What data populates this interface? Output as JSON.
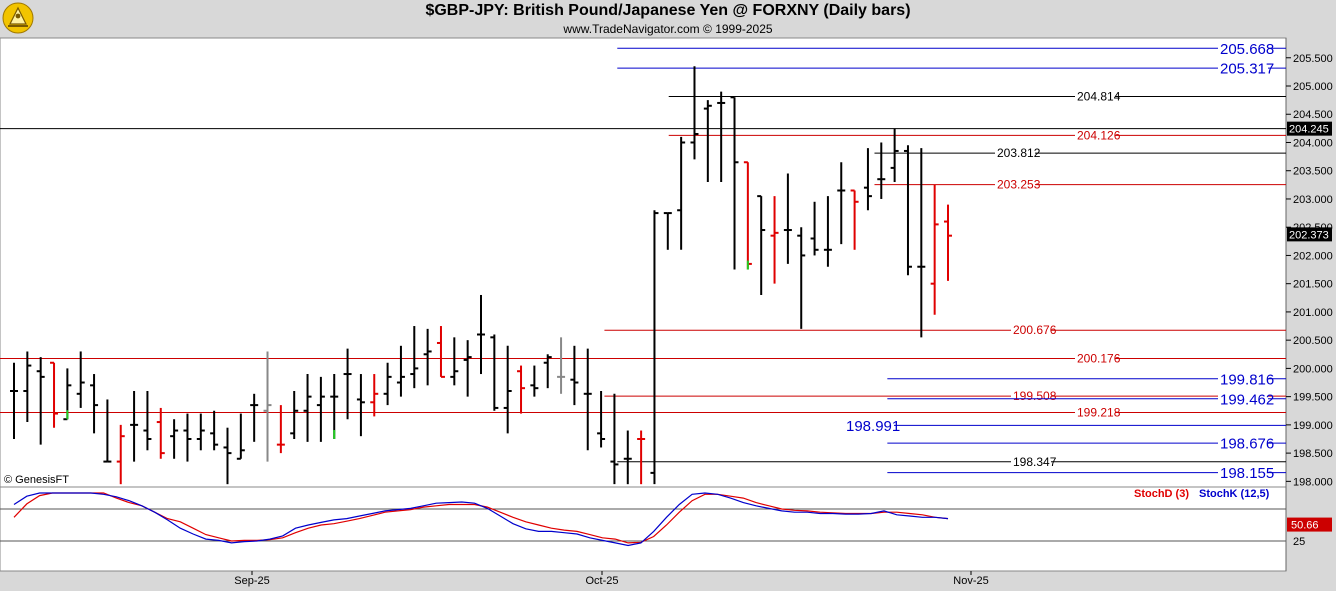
{
  "header": {
    "title": "$GBP-JPY:  British Pound/Japanese Yen @ FORXNY  (Daily bars)",
    "subtitle": "www.TradeNavigator.com © 1999-2025"
  },
  "colors": {
    "up_bar": "#000000",
    "down_bar": "#e00000",
    "special_bar_green": "#22cc22",
    "special_bar_gray": "#888888",
    "blue_level": "#0000cc",
    "red_level": "#cc0000",
    "black_level": "#000000",
    "stoch_d": "#e00000",
    "stoch_k": "#0000cc",
    "panel_bg": "#ffffff",
    "frame_bg": "#d8d8d8"
  },
  "icons": {
    "logo": "genesis-logo-icon"
  },
  "watermark": "© GenesisFT",
  "chart_data": [
    {
      "type": "ohlc",
      "ylim": [
        197.9,
        205.85
      ],
      "y_ticks": [
        "198.000",
        "198.500",
        "199.000",
        "199.500",
        "200.000",
        "200.500",
        "201.000",
        "201.500",
        "202.000",
        "202.500",
        "203.000",
        "203.500",
        "204.000",
        "204.500",
        "205.000",
        "205.500"
      ],
      "x_labels": [
        "Sep-25",
        "Oct-25",
        "Nov-25"
      ],
      "last_price_tag": "204.245",
      "current_price_tag": "202.373",
      "bars": [
        {
          "o": 199.6,
          "h": 200.1,
          "l": 198.75,
          "c": 199.6,
          "color": "up"
        },
        {
          "o": 199.6,
          "h": 200.3,
          "l": 199.05,
          "c": 200.05,
          "color": "up"
        },
        {
          "o": 199.95,
          "h": 200.2,
          "l": 198.65,
          "c": 199.85,
          "color": "up"
        },
        {
          "o": 200.1,
          "h": 200.1,
          "l": 198.95,
          "c": 199.2,
          "color": "down"
        },
        {
          "o": 199.1,
          "h": 200.0,
          "l": 199.1,
          "c": 199.7,
          "color": "up",
          "special": "green"
        },
        {
          "o": 199.55,
          "h": 200.3,
          "l": 199.3,
          "c": 199.75,
          "color": "up"
        },
        {
          "o": 199.7,
          "h": 199.9,
          "l": 198.85,
          "c": 199.35,
          "color": "up"
        },
        {
          "o": 198.35,
          "h": 199.45,
          "l": 198.35,
          "c": 198.35,
          "color": "up"
        },
        {
          "o": 198.35,
          "h": 199.0,
          "l": 197.95,
          "c": 198.8,
          "color": "down"
        },
        {
          "o": 199.0,
          "h": 199.6,
          "l": 198.35,
          "c": 199.0,
          "color": "up"
        },
        {
          "o": 198.9,
          "h": 199.6,
          "l": 198.55,
          "c": 198.75,
          "color": "up"
        },
        {
          "o": 199.05,
          "h": 199.3,
          "l": 198.4,
          "c": 198.5,
          "color": "down"
        },
        {
          "o": 198.8,
          "h": 199.1,
          "l": 198.4,
          "c": 198.9,
          "color": "up"
        },
        {
          "o": 198.9,
          "h": 199.2,
          "l": 198.35,
          "c": 198.75,
          "color": "up"
        },
        {
          "o": 198.75,
          "h": 199.2,
          "l": 198.55,
          "c": 198.9,
          "color": "up"
        },
        {
          "o": 198.85,
          "h": 199.25,
          "l": 198.55,
          "c": 198.65,
          "color": "up"
        },
        {
          "o": 198.6,
          "h": 198.95,
          "l": 197.95,
          "c": 198.5,
          "color": "up"
        },
        {
          "o": 198.4,
          "h": 199.2,
          "l": 198.4,
          "c": 198.55,
          "color": "up"
        },
        {
          "o": 199.35,
          "h": 199.55,
          "l": 198.7,
          "c": 199.35,
          "color": "up"
        },
        {
          "o": 199.25,
          "h": 200.3,
          "l": 198.35,
          "c": 199.35,
          "color": "up",
          "special": "gray"
        },
        {
          "o": 198.65,
          "h": 199.35,
          "l": 198.5,
          "c": 198.65,
          "color": "down"
        },
        {
          "o": 198.85,
          "h": 199.6,
          "l": 198.75,
          "c": 199.25,
          "color": "up"
        },
        {
          "o": 199.25,
          "h": 199.9,
          "l": 198.7,
          "c": 199.5,
          "color": "up"
        },
        {
          "o": 199.35,
          "h": 199.85,
          "l": 198.7,
          "c": 199.5,
          "color": "up"
        },
        {
          "o": 199.5,
          "h": 199.9,
          "l": 198.75,
          "c": 199.5,
          "color": "up",
          "special": "green"
        },
        {
          "o": 199.9,
          "h": 200.35,
          "l": 199.1,
          "c": 199.9,
          "color": "up"
        },
        {
          "o": 199.45,
          "h": 199.9,
          "l": 198.8,
          "c": 199.4,
          "color": "up"
        },
        {
          "o": 199.4,
          "h": 199.9,
          "l": 199.15,
          "c": 199.55,
          "color": "down"
        },
        {
          "o": 199.55,
          "h": 200.1,
          "l": 199.35,
          "c": 199.85,
          "color": "up"
        },
        {
          "o": 199.75,
          "h": 200.4,
          "l": 199.5,
          "c": 199.85,
          "color": "up"
        },
        {
          "o": 199.9,
          "h": 200.75,
          "l": 199.65,
          "c": 200.0,
          "color": "up"
        },
        {
          "o": 200.25,
          "h": 200.7,
          "l": 199.7,
          "c": 200.3,
          "color": "up"
        },
        {
          "o": 200.45,
          "h": 200.75,
          "l": 199.85,
          "c": 199.85,
          "color": "down"
        },
        {
          "o": 199.85,
          "h": 200.55,
          "l": 199.7,
          "c": 199.95,
          "color": "up"
        },
        {
          "o": 200.15,
          "h": 200.5,
          "l": 199.5,
          "c": 200.2,
          "color": "up"
        },
        {
          "o": 200.6,
          "h": 201.3,
          "l": 199.9,
          "c": 200.6,
          "color": "up"
        },
        {
          "o": 200.55,
          "h": 200.6,
          "l": 199.25,
          "c": 199.3,
          "color": "up"
        },
        {
          "o": 199.3,
          "h": 200.4,
          "l": 198.85,
          "c": 199.6,
          "color": "up"
        },
        {
          "o": 199.95,
          "h": 200.05,
          "l": 199.2,
          "c": 199.65,
          "color": "down"
        },
        {
          "o": 199.7,
          "h": 200.05,
          "l": 199.5,
          "c": 199.65,
          "color": "up"
        },
        {
          "o": 200.1,
          "h": 200.25,
          "l": 199.65,
          "c": 200.2,
          "color": "up"
        },
        {
          "o": 199.85,
          "h": 200.55,
          "l": 199.55,
          "c": 199.85,
          "color": "up",
          "special": "gray"
        },
        {
          "o": 199.8,
          "h": 200.4,
          "l": 199.35,
          "c": 199.75,
          "color": "up"
        },
        {
          "o": 199.55,
          "h": 200.35,
          "l": 198.55,
          "c": 199.55,
          "color": "up"
        },
        {
          "o": 198.85,
          "h": 199.6,
          "l": 198.6,
          "c": 198.75,
          "color": "up"
        },
        {
          "o": 198.35,
          "h": 199.55,
          "l": 197.95,
          "c": 198.3,
          "color": "up"
        },
        {
          "o": 198.4,
          "h": 198.9,
          "l": 197.95,
          "c": 198.4,
          "color": "up"
        },
        {
          "o": 198.75,
          "h": 198.9,
          "l": 197.95,
          "c": 198.75,
          "color": "down"
        },
        {
          "o": 198.15,
          "h": 202.8,
          "l": 197.95,
          "c": 202.75,
          "color": "up"
        },
        {
          "o": 202.75,
          "h": 202.75,
          "l": 202.1,
          "c": 202.75,
          "color": "up"
        },
        {
          "o": 202.8,
          "h": 204.1,
          "l": 202.1,
          "c": 204.0,
          "color": "up"
        },
        {
          "o": 204.0,
          "h": 205.35,
          "l": 203.7,
          "c": 204.15,
          "color": "up"
        },
        {
          "o": 204.6,
          "h": 204.75,
          "l": 203.3,
          "c": 204.65,
          "color": "up"
        },
        {
          "o": 204.7,
          "h": 204.9,
          "l": 203.3,
          "c": 204.7,
          "color": "up"
        },
        {
          "o": 204.8,
          "h": 204.8,
          "l": 201.75,
          "c": 203.65,
          "color": "up"
        },
        {
          "o": 203.65,
          "h": 203.65,
          "l": 201.75,
          "c": 201.85,
          "color": "down",
          "special": "green"
        },
        {
          "o": 203.05,
          "h": 203.05,
          "l": 201.3,
          "c": 202.45,
          "color": "up"
        },
        {
          "o": 202.35,
          "h": 203.05,
          "l": 201.5,
          "c": 202.4,
          "color": "down"
        },
        {
          "o": 202.45,
          "h": 203.45,
          "l": 201.85,
          "c": 202.45,
          "color": "up"
        },
        {
          "o": 202.35,
          "h": 202.5,
          "l": 200.7,
          "c": 202.0,
          "color": "up"
        },
        {
          "o": 202.3,
          "h": 202.95,
          "l": 202.0,
          "c": 202.1,
          "color": "up"
        },
        {
          "o": 202.1,
          "h": 203.05,
          "l": 201.8,
          "c": 202.1,
          "color": "up"
        },
        {
          "o": 203.15,
          "h": 203.65,
          "l": 202.2,
          "c": 203.15,
          "color": "up"
        },
        {
          "o": 203.15,
          "h": 203.15,
          "l": 202.1,
          "c": 202.95,
          "color": "down"
        },
        {
          "o": 203.2,
          "h": 203.9,
          "l": 202.8,
          "c": 203.05,
          "color": "up"
        },
        {
          "o": 203.35,
          "h": 204.0,
          "l": 203.0,
          "c": 203.35,
          "color": "up"
        },
        {
          "o": 203.55,
          "h": 204.25,
          "l": 203.3,
          "c": 203.85,
          "color": "up"
        },
        {
          "o": 203.85,
          "h": 203.95,
          "l": 201.65,
          "c": 201.8,
          "color": "up"
        },
        {
          "o": 201.8,
          "h": 203.9,
          "l": 200.55,
          "c": 201.8,
          "color": "up"
        },
        {
          "o": 201.5,
          "h": 203.25,
          "l": 200.95,
          "c": 202.55,
          "color": "down"
        },
        {
          "o": 202.6,
          "h": 202.9,
          "l": 201.55,
          "c": 202.35,
          "color": "down"
        }
      ],
      "levels": [
        {
          "value": "205.668",
          "y": 205.668,
          "color": "blue",
          "x_from": 0.48
        },
        {
          "value": "205.317",
          "y": 205.317,
          "color": "blue",
          "x_from": 0.48
        },
        {
          "value": "204.814",
          "y": 204.814,
          "color": "black",
          "x_from": 0.52
        },
        {
          "value": "204.126",
          "y": 204.126,
          "color": "red",
          "x_from": 0.52
        },
        {
          "value": "203.812",
          "y": 203.812,
          "color": "black",
          "x_from": 0.68
        },
        {
          "value": "203.253",
          "y": 203.253,
          "color": "red",
          "x_from": 0.68
        },
        {
          "value": "200.676",
          "y": 200.676,
          "color": "red",
          "x_from": 0.47
        },
        {
          "value": "200.176",
          "y": 200.176,
          "color": "red",
          "x_from": 0.0
        },
        {
          "value": "199.816",
          "y": 199.816,
          "color": "blue",
          "x_from": 0.69
        },
        {
          "value": "199.508",
          "y": 199.508,
          "color": "red",
          "x_from": 0.47
        },
        {
          "value": "199.462",
          "y": 199.462,
          "color": "blue",
          "x_from": 0.69
        },
        {
          "value": "199.218",
          "y": 199.218,
          "color": "red",
          "x_from": 0.0
        },
        {
          "value": "198.991",
          "y": 198.991,
          "color": "blue",
          "x_from": 0.69
        },
        {
          "value": "198.676",
          "y": 198.676,
          "color": "blue",
          "x_from": 0.69
        },
        {
          "value": "198.347",
          "y": 198.347,
          "color": "black",
          "x_from": 0.48
        },
        {
          "value": "198.155",
          "y": 198.155,
          "color": "blue",
          "x_from": 0.69
        }
      ],
      "last_line": {
        "y": 204.245,
        "color": "black"
      }
    },
    {
      "type": "line",
      "title": "",
      "series": [
        {
          "name": "StochD (3)",
          "color": "#e00000",
          "values": [
            62,
            83,
            96,
            100,
            100,
            100,
            100,
            100,
            92,
            85,
            80,
            70,
            60,
            55,
            45,
            35,
            30,
            25,
            26,
            26,
            27,
            30,
            38,
            45,
            50,
            52,
            56,
            60,
            65,
            70,
            72,
            74,
            78,
            80,
            82,
            82,
            82,
            78,
            70,
            62,
            55,
            50,
            45,
            42,
            40,
            35,
            30,
            28,
            22,
            23,
            32,
            50,
            70,
            88,
            98,
            98,
            95,
            92,
            85,
            80,
            75,
            73,
            72,
            70,
            69,
            68,
            68,
            68,
            70,
            70,
            68,
            66,
            62,
            60
          ]
        },
        {
          "name": "StochK (12,5)",
          "color": "#0000cc",
          "values": [
            82,
            95,
            100,
            100,
            100,
            100,
            100,
            98,
            94,
            88,
            80,
            70,
            58,
            45,
            36,
            28,
            26,
            22,
            24,
            25,
            28,
            33,
            45,
            50,
            54,
            58,
            60,
            64,
            68,
            72,
            74,
            76,
            80,
            84,
            85,
            86,
            84,
            76,
            64,
            52,
            44,
            40,
            40,
            38,
            36,
            30,
            26,
            22,
            18,
            22,
            40,
            62,
            82,
            98,
            100,
            98,
            92,
            85,
            80,
            76,
            72,
            70,
            70,
            68,
            68,
            67,
            67,
            68,
            72,
            66,
            64,
            62,
            62,
            60
          ]
        }
      ],
      "ylim": [
        0,
        100
      ],
      "y_ticks": [
        "25"
      ],
      "value_tag": "50.66"
    }
  ]
}
